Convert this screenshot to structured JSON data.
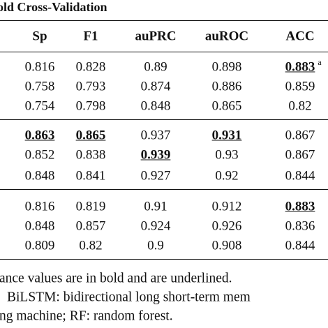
{
  "table": {
    "title": "old Cross-Validation",
    "headers": [
      "Sp",
      "F1",
      "auPRC",
      "auROC",
      "ACC"
    ],
    "rows": [
      [
        "0.816",
        "0.828",
        "0.89",
        "0.898",
        "0.883"
      ],
      [
        "0.758",
        "0.793",
        "0.874",
        "0.886",
        "0.859"
      ],
      [
        "0.754",
        "0.798",
        "0.848",
        "0.865",
        "0.82"
      ],
      [
        "0.863",
        "0.865",
        "0.937",
        "0.931",
        "0.867"
      ],
      [
        "0.852",
        "0.838",
        "0.939",
        "0.93",
        "0.867"
      ],
      [
        "0.848",
        "0.841",
        "0.927",
        "0.92",
        "0.844"
      ],
      [
        "0.816",
        "0.819",
        "0.91",
        "0.912",
        "0.883"
      ],
      [
        "0.848",
        "0.857",
        "0.924",
        "0.926",
        "0.836"
      ],
      [
        "0.809",
        "0.82",
        "0.9",
        "0.908",
        "0.844"
      ]
    ],
    "superscript": "a",
    "footnotes": [
      "ance values are in bold and are underlined.",
      "BiLSTM: bidirectional long short-term mem",
      "ng machine; RF: random forest."
    ]
  }
}
